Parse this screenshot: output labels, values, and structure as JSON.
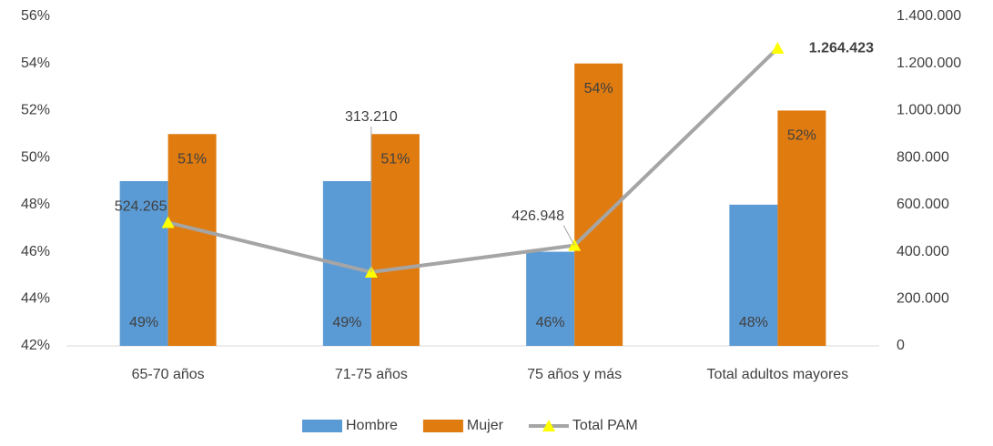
{
  "chart_data": {
    "type": "bar-line",
    "categories": [
      "65-70 años",
      "71-75 años",
      "75 años y más",
      "Total adultos  mayores"
    ],
    "series": [
      {
        "name": "Hombre",
        "color": "#5b9bd5",
        "values": [
          49,
          49,
          46,
          48
        ],
        "value_labels": [
          "49%",
          "49%",
          "46%",
          "48%"
        ]
      },
      {
        "name": "Mujer",
        "color": "#e07b10",
        "values": [
          51,
          51,
          54,
          52
        ],
        "value_labels": [
          "51%",
          "51%",
          "54%",
          "52%"
        ]
      },
      {
        "name": "Total PAM",
        "color": "#a5a5a5",
        "marker_color": "#ffff00",
        "type": "line",
        "axis": "y2",
        "values": [
          524265,
          313210,
          426948,
          1264423
        ],
        "value_labels": [
          "524.265",
          "313.210",
          "426.948",
          "1.264.423"
        ]
      }
    ],
    "ylim": [
      42,
      56
    ],
    "yticks": [
      {
        "value": 42,
        "label": "42%"
      },
      {
        "value": 44,
        "label": "44%"
      },
      {
        "value": 46,
        "label": "46%"
      },
      {
        "value": 48,
        "label": "48%"
      },
      {
        "value": 50,
        "label": "50%"
      },
      {
        "value": 52,
        "label": "52%"
      },
      {
        "value": 54,
        "label": "54%"
      },
      {
        "value": 56,
        "label": "56%"
      }
    ],
    "y2lim": [
      0,
      1400000
    ],
    "y2ticks": [
      0,
      {
        "value": 200000,
        "label": "200.000"
      },
      {
        "value": 400000,
        "label": "400.000"
      },
      {
        "value": 600000,
        "label": "600.000"
      },
      {
        "value": 800000,
        "label": "800.000"
      },
      {
        "value": 1000000,
        "label": "1.000.000"
      },
      {
        "value": 1200000,
        "label": "1.200.000"
      },
      {
        "value": 1400000,
        "label": "1.400.000"
      }
    ],
    "legend": "bottom"
  }
}
